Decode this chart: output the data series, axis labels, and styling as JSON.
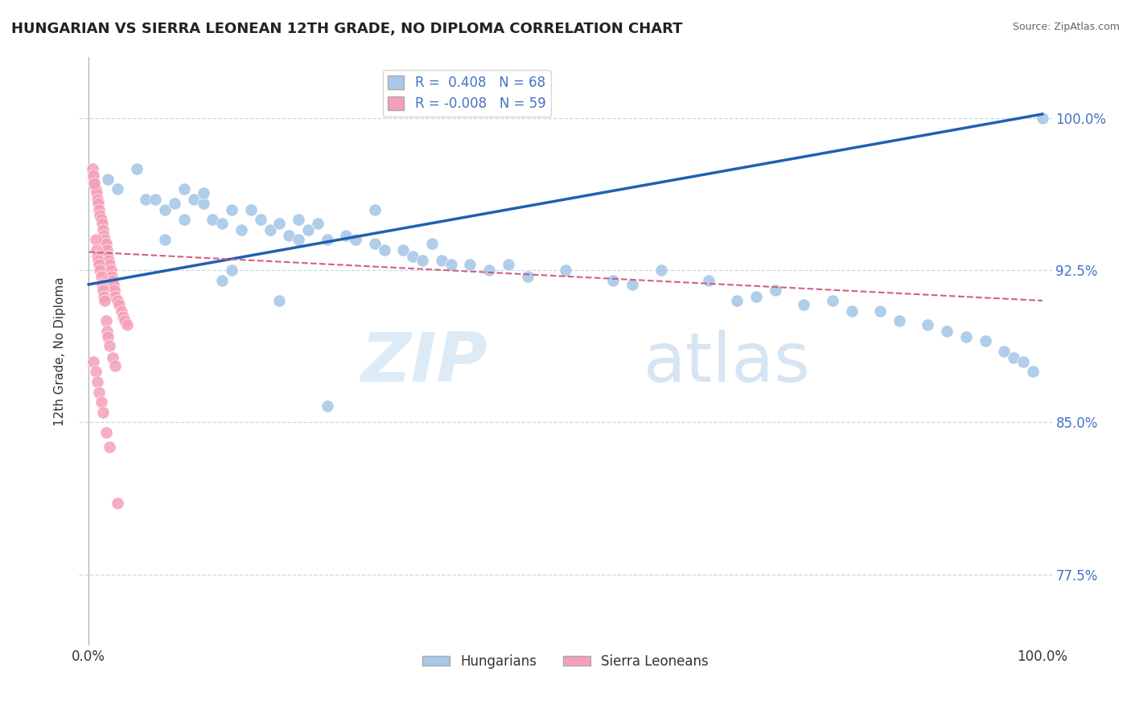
{
  "title": "HUNGARIAN VS SIERRA LEONEAN 12TH GRADE, NO DIPLOMA CORRELATION CHART",
  "source": "Source: ZipAtlas.com",
  "ylabel": "12th Grade, No Diploma",
  "xlim": [
    -0.01,
    1.01
  ],
  "ylim": [
    0.74,
    1.03
  ],
  "yticks": [
    0.775,
    0.85,
    0.925,
    1.0
  ],
  "ytick_labels": [
    "77.5%",
    "85.0%",
    "92.5%",
    "100.0%"
  ],
  "xticks": [
    0.0,
    1.0
  ],
  "xtick_labels": [
    "0.0%",
    "100.0%"
  ],
  "R_hungarian": 0.408,
  "N_hungarian": 68,
  "R_sierra": -0.008,
  "N_sierra": 59,
  "hungarian_color": "#a8c8e8",
  "sierra_color": "#f4a0b8",
  "hungarian_line_color": "#2060b0",
  "sierra_line_color": "#d06080",
  "background_color": "#ffffff",
  "grid_color": "#c8d8f0",
  "tick_color": "#4472c4",
  "hungarian_label": "Hungarians",
  "sierra_label": "Sierra Leoneans",
  "watermark_zip": "ZIP",
  "watermark_atlas": "atlas",
  "hun_line_x": [
    0.0,
    1.0
  ],
  "hun_line_y": [
    0.918,
    1.002
  ],
  "sie_line_x": [
    0.0,
    1.0
  ],
  "sie_line_y": [
    0.934,
    0.91
  ],
  "hungarian_x": [
    0.02,
    0.03,
    0.05,
    0.06,
    0.07,
    0.08,
    0.09,
    0.1,
    0.11,
    0.12,
    0.13,
    0.14,
    0.15,
    0.16,
    0.17,
    0.18,
    0.19,
    0.2,
    0.21,
    0.22,
    0.23,
    0.24,
    0.25,
    0.27,
    0.28,
    0.3,
    0.31,
    0.33,
    0.34,
    0.35,
    0.36,
    0.37,
    0.38,
    0.4,
    0.42,
    0.44,
    0.46,
    0.5,
    0.55,
    0.57,
    0.6,
    0.65,
    0.68,
    0.7,
    0.72,
    0.75,
    0.78,
    0.8,
    0.83,
    0.85,
    0.88,
    0.9,
    0.92,
    0.94,
    0.96,
    0.97,
    0.98,
    0.99,
    1.0,
    0.14,
    0.15,
    0.2,
    0.25,
    0.08,
    0.1,
    0.12,
    0.22,
    0.3
  ],
  "hungarian_y": [
    0.97,
    0.965,
    0.975,
    0.96,
    0.96,
    0.955,
    0.958,
    0.95,
    0.96,
    0.958,
    0.95,
    0.948,
    0.955,
    0.945,
    0.955,
    0.95,
    0.945,
    0.948,
    0.942,
    0.95,
    0.945,
    0.948,
    0.94,
    0.942,
    0.94,
    0.938,
    0.935,
    0.935,
    0.932,
    0.93,
    0.938,
    0.93,
    0.928,
    0.928,
    0.925,
    0.928,
    0.922,
    0.925,
    0.92,
    0.918,
    0.925,
    0.92,
    0.91,
    0.912,
    0.915,
    0.908,
    0.91,
    0.905,
    0.905,
    0.9,
    0.898,
    0.895,
    0.892,
    0.89,
    0.885,
    0.882,
    0.88,
    0.875,
    1.0,
    0.92,
    0.925,
    0.91,
    0.858,
    0.94,
    0.965,
    0.963,
    0.94,
    0.955
  ],
  "sierra_x": [
    0.005,
    0.006,
    0.007,
    0.008,
    0.009,
    0.01,
    0.011,
    0.012,
    0.013,
    0.014,
    0.015,
    0.016,
    0.017,
    0.018,
    0.019,
    0.02,
    0.021,
    0.022,
    0.023,
    0.024,
    0.025,
    0.026,
    0.027,
    0.028,
    0.03,
    0.032,
    0.034,
    0.036,
    0.038,
    0.04,
    0.004,
    0.005,
    0.006,
    0.007,
    0.008,
    0.009,
    0.01,
    0.011,
    0.012,
    0.013,
    0.014,
    0.015,
    0.016,
    0.017,
    0.018,
    0.019,
    0.02,
    0.022,
    0.025,
    0.028,
    0.005,
    0.007,
    0.009,
    0.011,
    0.013,
    0.015,
    0.018,
    0.022,
    0.03
  ],
  "sierra_y": [
    0.97,
    0.968,
    0.965,
    0.963,
    0.96,
    0.958,
    0.955,
    0.952,
    0.95,
    0.948,
    0.945,
    0.942,
    0.94,
    0.938,
    0.935,
    0.932,
    0.93,
    0.928,
    0.925,
    0.922,
    0.92,
    0.918,
    0.915,
    0.912,
    0.91,
    0.908,
    0.905,
    0.902,
    0.9,
    0.898,
    0.975,
    0.972,
    0.968,
    0.94,
    0.935,
    0.932,
    0.93,
    0.928,
    0.925,
    0.922,
    0.918,
    0.915,
    0.912,
    0.91,
    0.9,
    0.895,
    0.892,
    0.888,
    0.882,
    0.878,
    0.88,
    0.875,
    0.87,
    0.865,
    0.86,
    0.855,
    0.845,
    0.838,
    0.81
  ]
}
